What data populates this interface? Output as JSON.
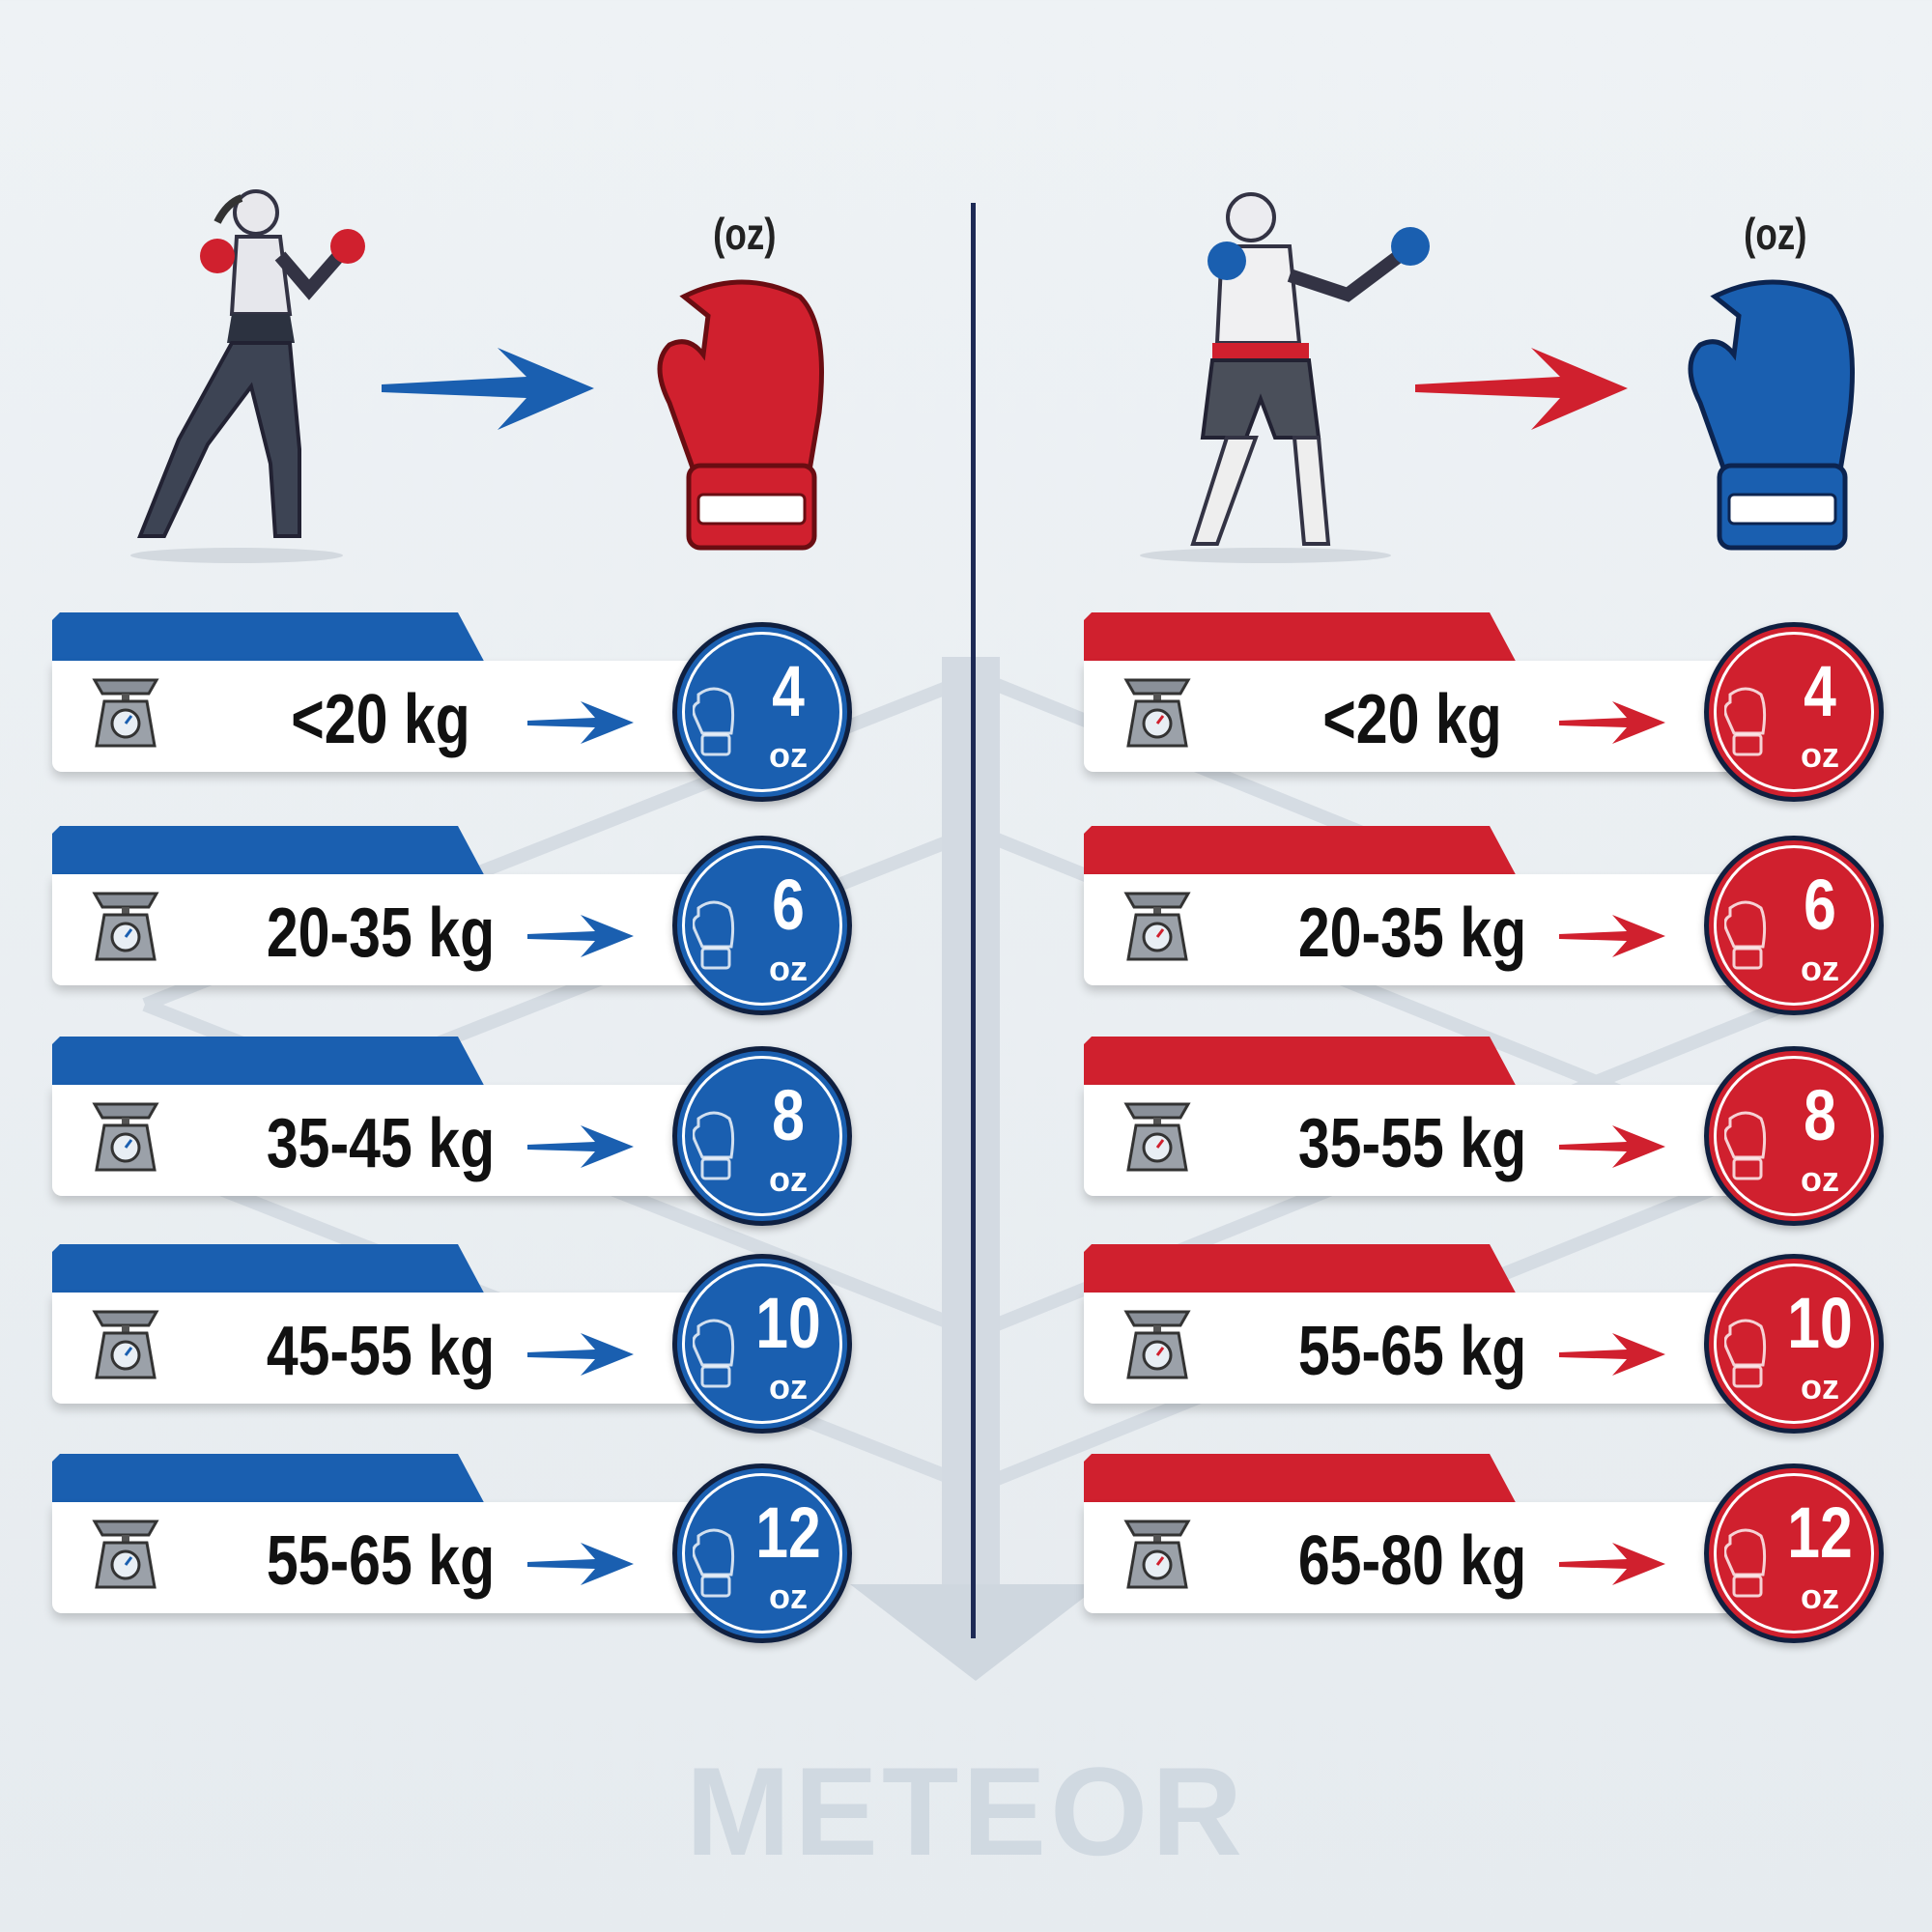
{
  "colors": {
    "blue": "#1a5fb0",
    "red": "#d0202e",
    "background": "#e9eef2"
  },
  "left": {
    "figure": "female-boxer",
    "glove_color": "red",
    "unit_label": "(oz)",
    "rows": [
      {
        "weight": "<20 kg",
        "oz": "4",
        "unit": "oz"
      },
      {
        "weight": "20-35 kg",
        "oz": "6",
        "unit": "oz"
      },
      {
        "weight": "35-45 kg",
        "oz": "8",
        "unit": "oz"
      },
      {
        "weight": "45-55 kg",
        "oz": "10",
        "unit": "oz"
      },
      {
        "weight": "55-65 kg",
        "oz": "12",
        "unit": "oz"
      }
    ]
  },
  "right": {
    "figure": "male-boxer",
    "glove_color": "blue",
    "unit_label": "(oz)",
    "rows": [
      {
        "weight": "<20 kg",
        "oz": "4",
        "unit": "oz"
      },
      {
        "weight": "20-35 kg",
        "oz": "6",
        "unit": "oz"
      },
      {
        "weight": "35-55 kg",
        "oz": "8",
        "unit": "oz"
      },
      {
        "weight": "55-65 kg",
        "oz": "10",
        "unit": "oz"
      },
      {
        "weight": "65-80 kg",
        "oz": "12",
        "unit": "oz"
      }
    ]
  },
  "logo": {
    "text": "METEOR"
  }
}
